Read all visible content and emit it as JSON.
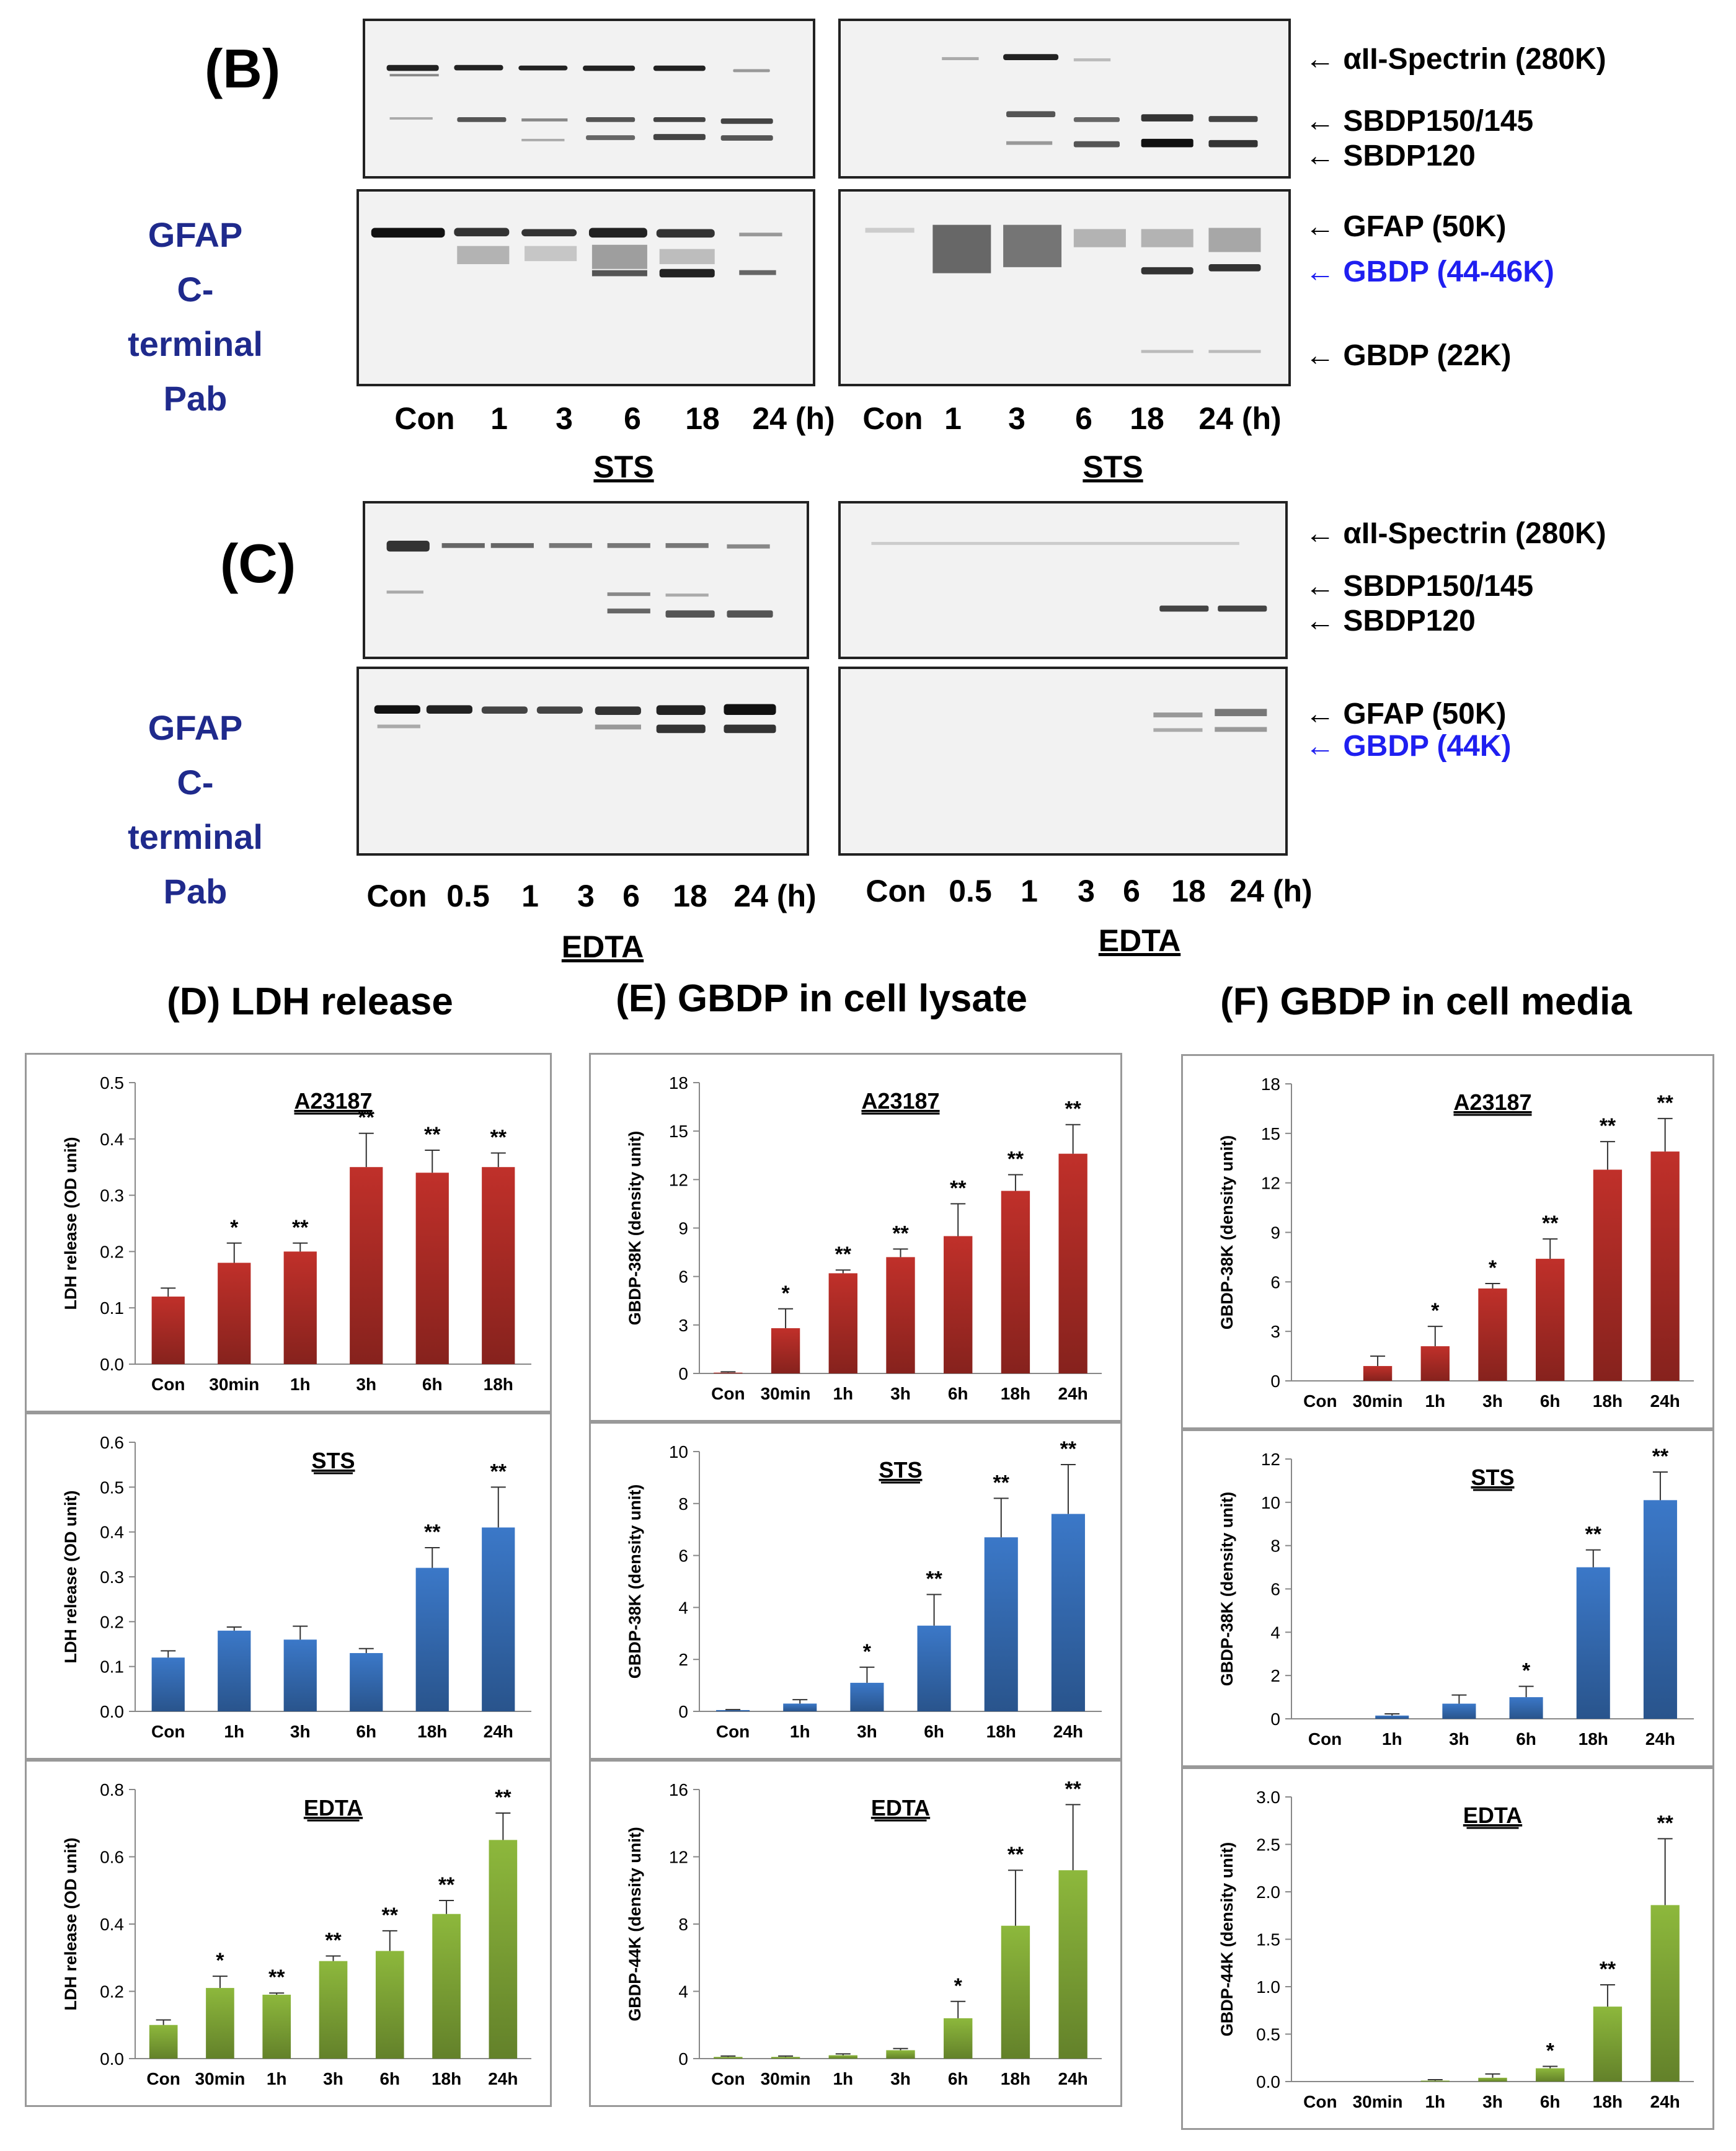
{
  "panels": {
    "B": {
      "letter": "(B)",
      "antibody_label": [
        "GFAP",
        "C-terminal",
        "Pab"
      ],
      "left": {
        "lanes": [
          "Con",
          "1",
          "3",
          "6",
          "18",
          "24 (h)"
        ],
        "treatment": "STS"
      },
      "right": {
        "lanes": [
          "Con",
          "1",
          "3",
          "6",
          "18",
          "24 (h)"
        ],
        "treatment": "STS"
      },
      "band_labels": [
        {
          "text": "αII-Spectrin (280K)",
          "color": "#000000"
        },
        {
          "text": "SBDP150/145",
          "color": "#000000"
        },
        {
          "text": "SBDP120",
          "color": "#000000"
        },
        {
          "text": "GFAP (50K)",
          "color": "#000000"
        },
        {
          "text": "GBDP (44-46K)",
          "color": "#1f1ff0"
        },
        {
          "text": "GBDP (22K)",
          "color": "#000000"
        }
      ]
    },
    "C": {
      "letter": "(C)",
      "antibody_label": [
        "GFAP",
        "C-terminal",
        "Pab"
      ],
      "left": {
        "lanes": [
          "Con",
          "0.5",
          "1",
          "3",
          "6",
          "18",
          "24 (h)"
        ],
        "treatment": "EDTA"
      },
      "right": {
        "lanes": [
          "Con",
          "0.5",
          "1",
          "3",
          "6",
          "18",
          "24 (h)"
        ],
        "treatment": "EDTA"
      },
      "band_labels": [
        {
          "text": "αII-Spectrin (280K)",
          "color": "#000000"
        },
        {
          "text": "SBDP150/145",
          "color": "#000000"
        },
        {
          "text": "SBDP120",
          "color": "#000000"
        },
        {
          "text": "GFAP (50K)",
          "color": "#000000"
        },
        {
          "text": "GBDP (44K)",
          "color": "#1f1ff0"
        }
      ]
    }
  },
  "section_titles": {
    "D": "(D) LDH release",
    "E": "(E) GBDP in cell lysate",
    "F": "(F) GBDP in cell media"
  },
  "arrow_glyph": "←",
  "chart_data": [
    {
      "id": "D-A23187",
      "type": "bar",
      "title": "A23187",
      "ylabel": "LDH release (OD unit)",
      "color": "#c0302a",
      "categories": [
        "Con",
        "30min",
        "1h",
        "3h",
        "6h",
        "18h"
      ],
      "values": [
        0.12,
        0.18,
        0.2,
        0.35,
        0.34,
        0.35
      ],
      "errors": [
        0.015,
        0.035,
        0.015,
        0.06,
        0.04,
        0.025
      ],
      "sig": [
        "",
        "*",
        "**",
        "**",
        "**",
        "**"
      ],
      "ylim": [
        0,
        0.5
      ],
      "ticks": [
        0.0,
        0.1,
        0.2,
        0.3,
        0.4,
        0.5
      ],
      "tick_labels": [
        "0.0",
        "0.1",
        "0.2",
        "0.3",
        "0.4",
        "0.5"
      ]
    },
    {
      "id": "D-STS",
      "type": "bar",
      "title": "STS",
      "ylabel": "LDH release (OD unit)",
      "color": "#3b78c8",
      "categories": [
        "Con",
        "1h",
        "3h",
        "6h",
        "18h",
        "24h"
      ],
      "values": [
        0.12,
        0.18,
        0.16,
        0.13,
        0.32,
        0.41
      ],
      "errors": [
        0.015,
        0.008,
        0.03,
        0.01,
        0.045,
        0.09
      ],
      "sig": [
        "",
        "",
        "",
        "",
        "**",
        "**"
      ],
      "ylim": [
        0,
        0.6
      ],
      "ticks": [
        0.0,
        0.1,
        0.2,
        0.3,
        0.4,
        0.5,
        0.6
      ],
      "tick_labels": [
        "0.0",
        "0.1",
        "0.2",
        "0.3",
        "0.4",
        "0.5",
        "0.6"
      ]
    },
    {
      "id": "D-EDTA",
      "type": "bar",
      "title": "EDTA",
      "ylabel": "LDH release (OD unit)",
      "color": "#8db83c",
      "categories": [
        "Con",
        "30min",
        "1h",
        "3h",
        "6h",
        "18h",
        "24h"
      ],
      "values": [
        0.1,
        0.21,
        0.19,
        0.29,
        0.32,
        0.43,
        0.65
      ],
      "errors": [
        0.015,
        0.035,
        0.005,
        0.015,
        0.06,
        0.04,
        0.08
      ],
      "sig": [
        "",
        "*",
        "**",
        "**",
        "**",
        "**",
        "**"
      ],
      "ylim": [
        0,
        0.8
      ],
      "ticks": [
        0.0,
        0.2,
        0.4,
        0.6,
        0.8
      ],
      "tick_labels": [
        "0.0",
        "0.2",
        "0.4",
        "0.6",
        "0.8"
      ]
    },
    {
      "id": "E-A23187",
      "type": "bar",
      "title": "A23187",
      "ylabel": "GBDP-38K  (density unit)",
      "color": "#c0302a",
      "categories": [
        "Con",
        "30min",
        "1h",
        "3h",
        "6h",
        "18h",
        "24h"
      ],
      "values": [
        0.05,
        2.8,
        6.2,
        7.2,
        8.5,
        11.3,
        13.6
      ],
      "errors": [
        0.05,
        1.2,
        0.2,
        0.5,
        2.0,
        1.0,
        1.8
      ],
      "sig": [
        "",
        "*",
        "**",
        "**",
        "**",
        "**",
        "**"
      ],
      "ylim": [
        0,
        18
      ],
      "ticks": [
        0,
        3,
        6,
        9,
        12,
        15,
        18
      ],
      "tick_labels": [
        "0",
        "3",
        "6",
        "9",
        "12",
        "15",
        "18"
      ]
    },
    {
      "id": "E-STS",
      "type": "bar",
      "title": "STS",
      "ylabel": "GBDP-38K  (density unit)",
      "color": "#3b78c8",
      "categories": [
        "Con",
        "1h",
        "3h",
        "6h",
        "18h",
        "24h"
      ],
      "values": [
        0.05,
        0.3,
        1.1,
        3.3,
        6.7,
        7.6
      ],
      "errors": [
        0.02,
        0.15,
        0.6,
        1.2,
        1.5,
        1.9
      ],
      "sig": [
        "",
        "",
        "*",
        "**",
        "**",
        "**"
      ],
      "ylim": [
        0,
        10
      ],
      "ticks": [
        0,
        2,
        4,
        6,
        8,
        10
      ],
      "tick_labels": [
        "0",
        "2",
        "4",
        "6",
        "8",
        "10"
      ]
    },
    {
      "id": "E-EDTA",
      "type": "bar",
      "title": "EDTA",
      "ylabel": "GBDP-44K  (density unit)",
      "color": "#8db83c",
      "categories": [
        "Con",
        "30min",
        "1h",
        "3h",
        "6h",
        "18h",
        "24h"
      ],
      "values": [
        0.1,
        0.1,
        0.2,
        0.5,
        2.4,
        7.9,
        11.2
      ],
      "errors": [
        0.05,
        0.05,
        0.08,
        0.1,
        1.0,
        3.3,
        3.9
      ],
      "sig": [
        "",
        "",
        "",
        "",
        "*",
        "**",
        "**"
      ],
      "ylim": [
        0,
        16
      ],
      "ticks": [
        0,
        4,
        8,
        12,
        16
      ],
      "tick_labels": [
        "0",
        "4",
        "8",
        "12",
        "16"
      ]
    },
    {
      "id": "F-A23187",
      "type": "bar",
      "title": "A23187",
      "ylabel": "GBDP-38K  (density unit)",
      "color": "#c0302a",
      "categories": [
        "Con",
        "30min",
        "1h",
        "3h",
        "6h",
        "18h",
        "24h"
      ],
      "values": [
        0,
        0.9,
        2.1,
        5.6,
        7.4,
        12.8,
        13.9
      ],
      "errors": [
        0,
        0.6,
        1.2,
        0.3,
        1.2,
        1.7,
        2.0
      ],
      "sig": [
        "",
        "",
        "*",
        "*",
        "**",
        "**",
        "**"
      ],
      "ylim": [
        0,
        18
      ],
      "ticks": [
        0,
        3,
        6,
        9,
        12,
        15,
        18
      ],
      "tick_labels": [
        "0",
        "3",
        "6",
        "9",
        "12",
        "15",
        "18"
      ]
    },
    {
      "id": "F-STS",
      "type": "bar",
      "title": "STS",
      "ylabel": "GBDP-38K  (density unit)",
      "color": "#3b78c8",
      "categories": [
        "Con",
        "1h",
        "3h",
        "6h",
        "18h",
        "24h"
      ],
      "values": [
        0,
        0.15,
        0.7,
        1.0,
        7.0,
        10.1
      ],
      "errors": [
        0,
        0.08,
        0.4,
        0.5,
        0.8,
        1.3
      ],
      "sig": [
        "",
        "",
        "",
        "*",
        "**",
        "**"
      ],
      "ylim": [
        0,
        12
      ],
      "ticks": [
        0,
        2,
        4,
        6,
        8,
        10,
        12
      ],
      "tick_labels": [
        "0",
        "2",
        "4",
        "6",
        "8",
        "10",
        "12"
      ]
    },
    {
      "id": "F-EDTA",
      "type": "bar",
      "title": "EDTA",
      "ylabel": "GBDP-44K  (density unit)",
      "color": "#8db83c",
      "categories": [
        "Con",
        "30min",
        "1h",
        "3h",
        "6h",
        "18h",
        "24h"
      ],
      "values": [
        0,
        0,
        0.01,
        0.04,
        0.14,
        0.79,
        1.86
      ],
      "errors": [
        0,
        0,
        0.01,
        0.04,
        0.02,
        0.23,
        0.7
      ],
      "sig": [
        "",
        "",
        "",
        "",
        "*",
        "**",
        "**"
      ],
      "ylim": [
        0,
        3
      ],
      "ticks": [
        0,
        0.5,
        1,
        1.5,
        2,
        2.5,
        3
      ],
      "tick_labels": [
        "0.0",
        "0.5",
        "1.0",
        "1.5",
        "2.0",
        "2.5",
        "3.0"
      ]
    }
  ]
}
